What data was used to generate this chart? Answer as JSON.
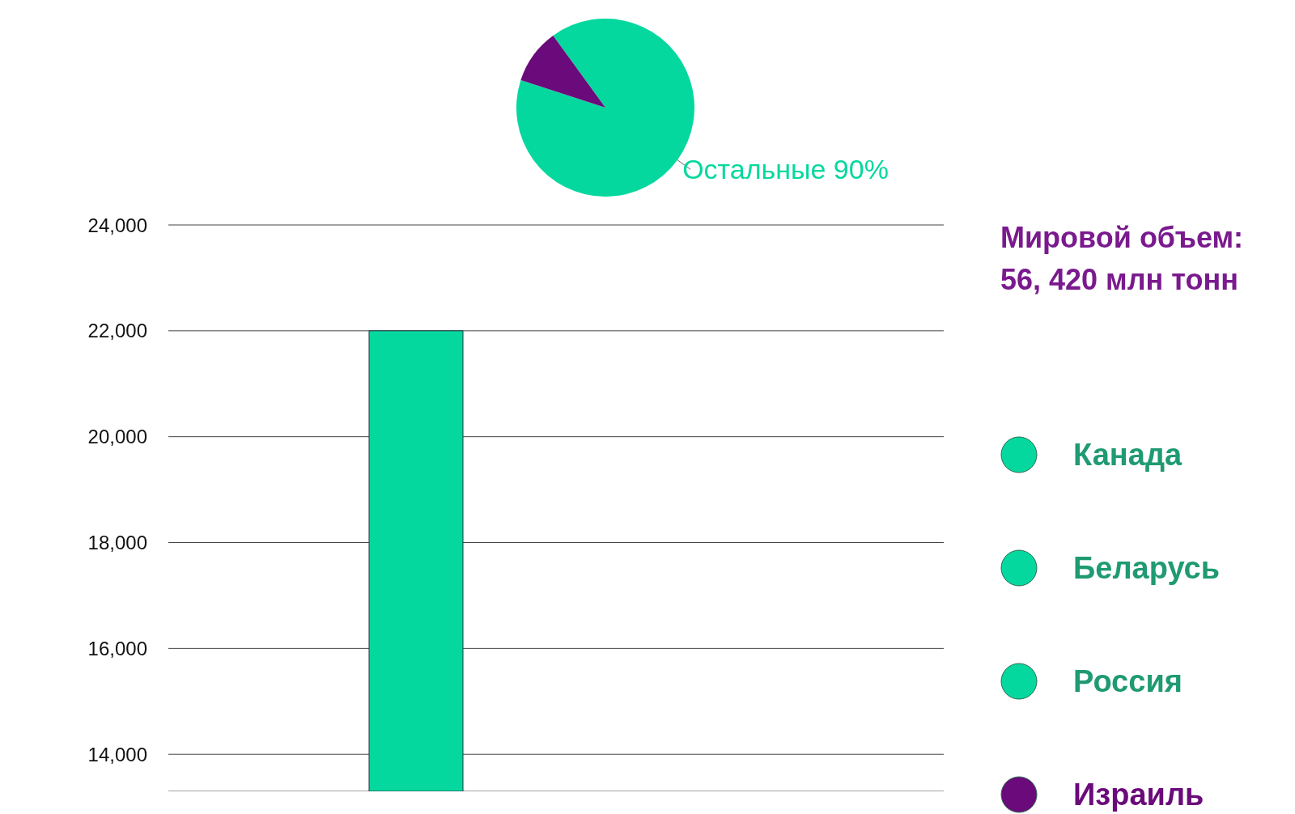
{
  "chart_data": [
    {
      "type": "pie",
      "categories": [
        "Остальные",
        null
      ],
      "values": [
        90,
        10
      ],
      "colors": [
        "#05d89e",
        "#6b0a7a"
      ],
      "value_labels": [
        "90%",
        null
      ]
    },
    {
      "type": "bar",
      "categories": [
        null
      ],
      "series": [
        {
          "name": "Канада",
          "color": "#05d89e",
          "values": [
            22000
          ]
        },
        {
          "name": "Беларусь",
          "color": "#05d89e",
          "values": [
            null
          ]
        },
        {
          "name": "Россия",
          "color": "#05d89e",
          "values": [
            null
          ]
        },
        {
          "name": "Израиль",
          "color": "#6b0a7a",
          "values": [
            null
          ]
        }
      ],
      "ylim": [
        13300,
        24000
      ],
      "yticks": [
        {
          "value": 14000,
          "label": "14,000"
        },
        {
          "value": 16000,
          "label": "16,000"
        },
        {
          "value": 18000,
          "label": "18,000"
        },
        {
          "value": 20000,
          "label": "20,000"
        },
        {
          "value": 22000,
          "label": "22,000"
        },
        {
          "value": 24000,
          "label": "24,000"
        }
      ],
      "grid": "y",
      "legend": "right",
      "annotations": [
        "Мировой объем:\n56, 420 млн тонн"
      ]
    }
  ]
}
